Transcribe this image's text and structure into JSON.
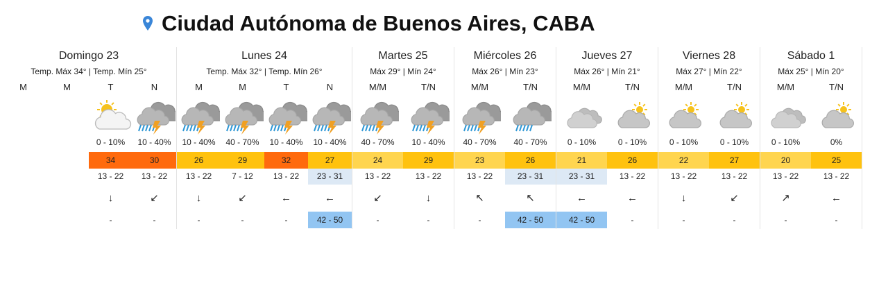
{
  "header": {
    "title": "Ciudad Autónoma de Buenos Aires, CABA"
  },
  "days": [
    {
      "name": "Domingo 23",
      "temps": "Temp. Máx 34° | Temp. Mín 25°",
      "periods": [
        {
          "label": "M"
        },
        {
          "label": "M"
        },
        {
          "label": "T",
          "icon": "partly-sunny",
          "precip": "0 - 10%",
          "temp": 34,
          "temp_color": "#ff6a0d",
          "range": "13 - 22",
          "wind": "↓",
          "gust": "-"
        },
        {
          "label": "N",
          "icon": "storm",
          "precip": "10 - 40%",
          "temp": 30,
          "temp_color": "#ff6a0d",
          "range": "13 - 22",
          "wind": "↙",
          "gust": "-"
        }
      ]
    },
    {
      "name": "Lunes 24",
      "temps": "Temp. Máx 32° | Temp. Mín 26°",
      "periods": [
        {
          "label": "M",
          "icon": "storm",
          "precip": "10 - 40%",
          "temp": 26,
          "temp_color": "#ffc20e",
          "range": "13 - 22",
          "wind": "↓",
          "gust": "-"
        },
        {
          "label": "M",
          "icon": "storm",
          "precip": "40 - 70%",
          "temp": 29,
          "temp_color": "#ffc20e",
          "range": "7 - 12",
          "wind": "↙",
          "gust": "-"
        },
        {
          "label": "T",
          "icon": "storm",
          "precip": "10 - 40%",
          "temp": 32,
          "temp_color": "#ff6a0d",
          "range": "13 - 22",
          "wind": "←",
          "gust": "-"
        },
        {
          "label": "N",
          "icon": "storm",
          "precip": "10 - 40%",
          "temp": 27,
          "temp_color": "#ffc20e",
          "range": "23 - 31",
          "range_color": "#dde9f5",
          "wind": "←",
          "gust": "42 - 50",
          "gust_color": "#92c5f2"
        }
      ]
    },
    {
      "name": "Martes 25",
      "temps": "Máx 29° | Mín 24°",
      "periods": [
        {
          "label": "M/M",
          "icon": "storm",
          "precip": "40 - 70%",
          "temp": 24,
          "temp_color": "#ffd54f",
          "range": "13 - 22",
          "wind": "↙",
          "gust": "-"
        },
        {
          "label": "T/N",
          "icon": "storm",
          "precip": "10 - 40%",
          "temp": 29,
          "temp_color": "#ffc20e",
          "range": "13 - 22",
          "wind": "↓",
          "gust": "-"
        }
      ]
    },
    {
      "name": "Miércoles 26",
      "temps": "Máx 26° | Mín 23°",
      "periods": [
        {
          "label": "M/M",
          "icon": "storm",
          "precip": "40 - 70%",
          "temp": 23,
          "temp_color": "#ffd54f",
          "range": "13 - 22",
          "wind": "↖",
          "gust": "-"
        },
        {
          "label": "T/N",
          "icon": "rain",
          "precip": "40 - 70%",
          "temp": 26,
          "temp_color": "#ffc20e",
          "range": "23 - 31",
          "range_color": "#dde9f5",
          "wind": "↖",
          "gust": "42 - 50",
          "gust_color": "#92c5f2"
        }
      ]
    },
    {
      "name": "Jueves 27",
      "temps": "Máx 26° | Mín 21°",
      "periods": [
        {
          "label": "M/M",
          "icon": "cloudy",
          "precip": "0 - 10%",
          "temp": 21,
          "temp_color": "#ffd54f",
          "range": "23 - 31",
          "range_color": "#dde9f5",
          "wind": "←",
          "gust": "42 - 50",
          "gust_color": "#92c5f2"
        },
        {
          "label": "T/N",
          "icon": "partly-cloudy",
          "precip": "0 - 10%",
          "temp": 26,
          "temp_color": "#ffc20e",
          "range": "13 - 22",
          "wind": "←",
          "gust": "-"
        }
      ]
    },
    {
      "name": "Viernes 28",
      "temps": "Máx 27° | Mín 22°",
      "periods": [
        {
          "label": "M/M",
          "icon": "partly-cloudy",
          "precip": "0 - 10%",
          "temp": 22,
          "temp_color": "#ffd54f",
          "range": "13 - 22",
          "wind": "↓",
          "gust": "-"
        },
        {
          "label": "T/N",
          "icon": "partly-cloudy",
          "precip": "0 - 10%",
          "temp": 27,
          "temp_color": "#ffc20e",
          "range": "13 - 22",
          "wind": "↙",
          "gust": "-"
        }
      ]
    },
    {
      "name": "Sábado 1",
      "temps": "Máx 25° | Mín 20°",
      "periods": [
        {
          "label": "M/M",
          "icon": "cloudy",
          "precip": "0 - 10%",
          "temp": 20,
          "temp_color": "#ffd54f",
          "range": "13 - 22",
          "wind": "↗",
          "gust": "-"
        },
        {
          "label": "T/N",
          "icon": "partly-cloudy",
          "precip": "0%",
          "temp": 25,
          "temp_color": "#ffc20e",
          "range": "13 - 22",
          "wind": "←",
          "gust": "-"
        }
      ]
    }
  ]
}
